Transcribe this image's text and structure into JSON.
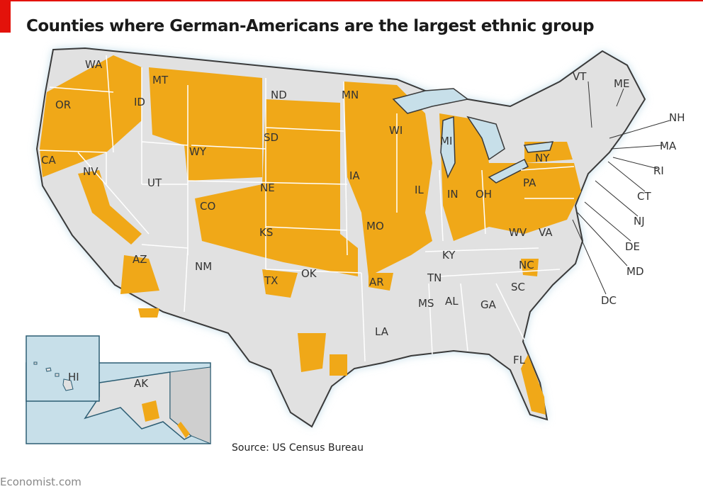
{
  "title": "Counties where German-Americans are the largest ethnic group",
  "source": "Source: US Census Bureau",
  "brand": "Economist.com",
  "colors": {
    "highlight": "#f0a818",
    "land": "#e1e1e1",
    "water": "#c7dfe9",
    "border": "#3a3a3a",
    "accent": "#e3120b"
  },
  "legend": {
    "highlighted": "German-Americans largest ethnic group"
  },
  "states": {
    "WA": "WA",
    "OR": "OR",
    "ID": "ID",
    "MT": "MT",
    "ND": "ND",
    "MN": "MN",
    "WI": "WI",
    "MI": "MI",
    "WY": "WY",
    "SD": "SD",
    "NY": "NY",
    "CA": "CA",
    "NV": "NV",
    "UT": "UT",
    "NE": "NE",
    "IA": "IA",
    "IL": "IL",
    "IN": "IN",
    "OH": "OH",
    "PA": "PA",
    "CO": "CO",
    "KS": "KS",
    "MO": "MO",
    "WV": "WV",
    "VA": "VA",
    "KY": "KY",
    "AZ": "AZ",
    "NM": "NM",
    "OK": "OK",
    "TN": "TN",
    "NC": "NC",
    "AR": "AR",
    "TX": "TX",
    "SC": "SC",
    "MS": "MS",
    "AL": "AL",
    "GA": "GA",
    "LA": "LA",
    "FL": "FL",
    "VT": "VT",
    "ME": "ME",
    "NH": "NH",
    "MA": "MA",
    "RI": "RI",
    "CT": "CT",
    "NJ": "NJ",
    "DE": "DE",
    "MD": "MD",
    "DC": "DC",
    "HI": "HI",
    "AK": "AK"
  }
}
